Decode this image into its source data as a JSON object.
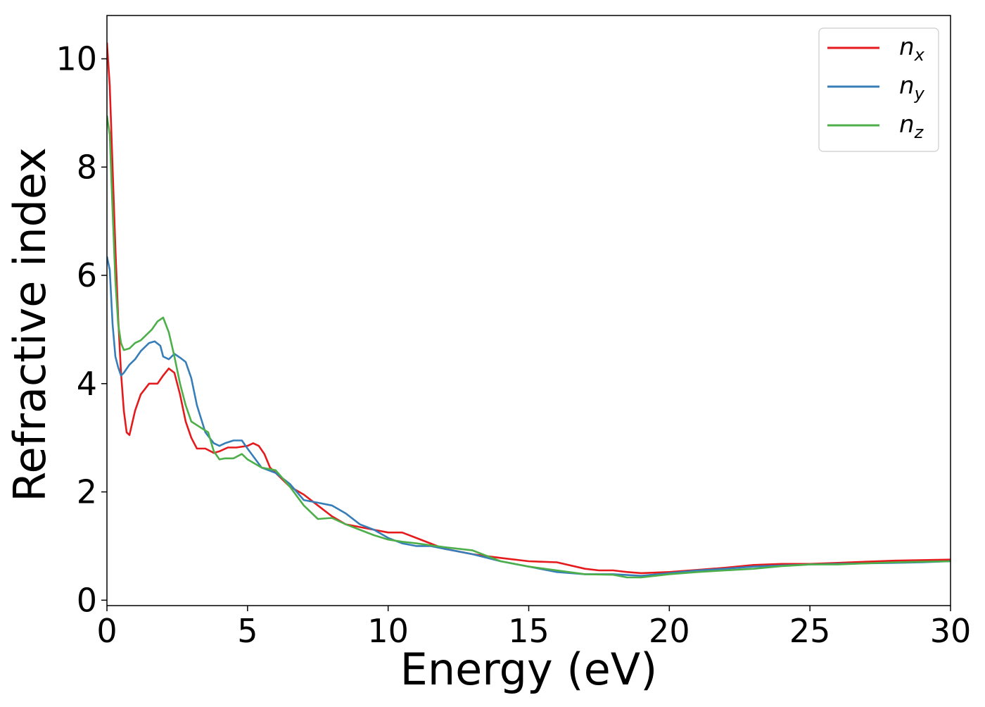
{
  "chart_data": {
    "type": "line",
    "title": "",
    "xlabel": "Energy (eV)",
    "ylabel": "Refractive index",
    "xlim": [
      0,
      30
    ],
    "ylim": [
      -0.1,
      10.8
    ],
    "xticks": [
      0,
      5,
      10,
      15,
      20,
      25,
      30
    ],
    "yticks": [
      0,
      2,
      4,
      6,
      8,
      10
    ],
    "grid": false,
    "legend_position": "top-right",
    "series": [
      {
        "name": "n",
        "subscript": "x",
        "color": "#e41a1c",
        "x": [
          0,
          0.1,
          0.2,
          0.3,
          0.4,
          0.5,
          0.6,
          0.7,
          0.8,
          1.0,
          1.2,
          1.5,
          1.8,
          2.0,
          2.2,
          2.4,
          2.6,
          2.8,
          3.0,
          3.2,
          3.5,
          3.8,
          4.0,
          4.3,
          4.6,
          5.0,
          5.2,
          5.4,
          5.6,
          5.8,
          6.0,
          6.5,
          7.0,
          7.5,
          8.0,
          8.5,
          9.0,
          9.5,
          10.0,
          10.5,
          11.0,
          11.5,
          12.0,
          13.0,
          14.0,
          15.0,
          16.0,
          17.0,
          17.5,
          18.0,
          18.5,
          19.0,
          20.0,
          21.0,
          22.0,
          23.0,
          24.0,
          25.0,
          26.0,
          27.0,
          28.0,
          29.0,
          30.0
        ],
        "y": [
          10.3,
          9.5,
          8.0,
          6.5,
          5.2,
          4.2,
          3.5,
          3.1,
          3.05,
          3.5,
          3.8,
          4.0,
          4.0,
          4.15,
          4.28,
          4.2,
          3.8,
          3.3,
          3.0,
          2.8,
          2.8,
          2.72,
          2.75,
          2.82,
          2.82,
          2.85,
          2.9,
          2.85,
          2.7,
          2.45,
          2.35,
          2.1,
          1.95,
          1.75,
          1.55,
          1.4,
          1.35,
          1.3,
          1.25,
          1.25,
          1.15,
          1.05,
          0.95,
          0.85,
          0.78,
          0.72,
          0.7,
          0.58,
          0.55,
          0.55,
          0.52,
          0.5,
          0.52,
          0.56,
          0.6,
          0.65,
          0.67,
          0.67,
          0.69,
          0.71,
          0.73,
          0.74,
          0.75
        ]
      },
      {
        "name": "n",
        "subscript": "y",
        "color": "#377eb8",
        "x": [
          0,
          0.1,
          0.2,
          0.3,
          0.4,
          0.5,
          0.6,
          0.8,
          1.0,
          1.2,
          1.5,
          1.7,
          1.9,
          2.0,
          2.2,
          2.4,
          2.6,
          2.8,
          3.0,
          3.2,
          3.5,
          3.8,
          4.0,
          4.2,
          4.5,
          4.8,
          5.0,
          5.5,
          6.0,
          6.5,
          7.0,
          7.5,
          8.0,
          8.5,
          9.0,
          9.5,
          10.0,
          10.5,
          11.0,
          11.5,
          12.0,
          13.0,
          14.0,
          15.0,
          16.0,
          17.0,
          18.0,
          19.0,
          20.0,
          21.0,
          22.0,
          23.0,
          24.0,
          25.0,
          26.0,
          27.0,
          28.0,
          29.0,
          30.0
        ],
        "y": [
          6.35,
          6.1,
          5.1,
          4.5,
          4.3,
          4.15,
          4.2,
          4.35,
          4.45,
          4.6,
          4.75,
          4.78,
          4.7,
          4.5,
          4.45,
          4.55,
          4.48,
          4.4,
          4.1,
          3.6,
          3.1,
          2.9,
          2.85,
          2.9,
          2.95,
          2.95,
          2.8,
          2.45,
          2.35,
          2.15,
          1.85,
          1.8,
          1.75,
          1.6,
          1.4,
          1.3,
          1.15,
          1.05,
          1.0,
          1.0,
          0.95,
          0.85,
          0.72,
          0.62,
          0.52,
          0.48,
          0.48,
          0.45,
          0.5,
          0.55,
          0.58,
          0.62,
          0.64,
          0.66,
          0.67,
          0.68,
          0.69,
          0.7,
          0.72
        ]
      },
      {
        "name": "n",
        "subscript": "z",
        "color": "#4daf4a",
        "x": [
          0,
          0.1,
          0.2,
          0.3,
          0.4,
          0.5,
          0.6,
          0.8,
          1.0,
          1.2,
          1.4,
          1.6,
          1.8,
          2.0,
          2.2,
          2.4,
          2.6,
          2.8,
          3.0,
          3.3,
          3.6,
          3.8,
          4.0,
          4.2,
          4.5,
          4.8,
          5.0,
          5.5,
          6.0,
          6.5,
          7.0,
          7.5,
          8.0,
          8.5,
          9.0,
          9.5,
          10.0,
          10.5,
          11.0,
          12.0,
          13.0,
          14.0,
          15.0,
          16.0,
          17.0,
          18.0,
          18.5,
          19.0,
          20.0,
          21.0,
          22.0,
          23.0,
          24.0,
          25.0,
          26.0,
          27.0,
          28.0,
          29.0,
          30.0
        ],
        "y": [
          8.95,
          8.6,
          7.2,
          5.9,
          5.1,
          4.75,
          4.62,
          4.65,
          4.75,
          4.8,
          4.9,
          5.0,
          5.15,
          5.22,
          4.95,
          4.5,
          4.0,
          3.6,
          3.3,
          3.2,
          3.1,
          2.75,
          2.6,
          2.62,
          2.62,
          2.7,
          2.6,
          2.45,
          2.4,
          2.1,
          1.75,
          1.5,
          1.52,
          1.4,
          1.3,
          1.2,
          1.12,
          1.08,
          1.05,
          0.98,
          0.92,
          0.72,
          0.62,
          0.55,
          0.48,
          0.47,
          0.42,
          0.42,
          0.48,
          0.52,
          0.55,
          0.58,
          0.63,
          0.66,
          0.66,
          0.68,
          0.7,
          0.71,
          0.72
        ]
      }
    ]
  }
}
